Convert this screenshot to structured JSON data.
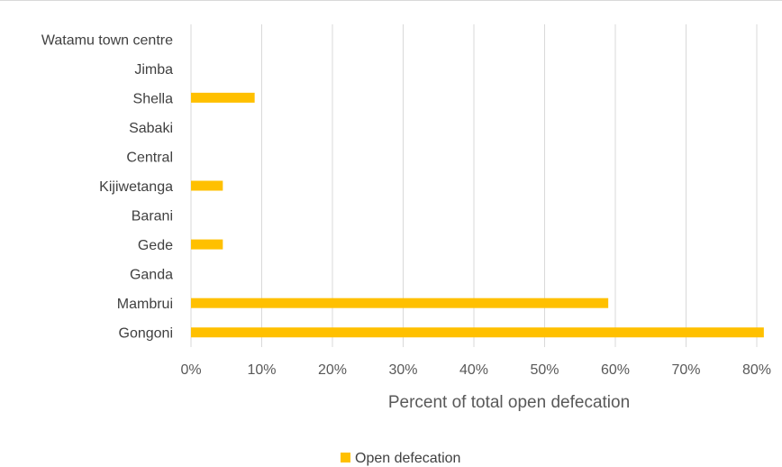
{
  "chart_data": {
    "type": "bar",
    "orientation": "horizontal",
    "categories": [
      "Watamu town centre",
      "Jimba",
      "Shella",
      "Sabaki",
      "Central",
      "Kijiwetanga",
      "Barani",
      "Gede",
      "Ganda",
      "Mambrui",
      "Gongoni"
    ],
    "series": [
      {
        "name": "Open defecation",
        "values": [
          0,
          0,
          9,
          0,
          0,
          4.5,
          0,
          4.5,
          0,
          59,
          81
        ]
      }
    ],
    "xlabel": "Percent of total open defecation",
    "ylabel": "",
    "xlim": [
      0,
      80
    ],
    "xticks": [
      "0%",
      "10%",
      "20%",
      "30%",
      "40%",
      "50%",
      "60%",
      "70%",
      "80%"
    ],
    "grid": "vertical",
    "legend_position": "bottom",
    "colors": {
      "bar": "#FFC000",
      "grid": "#d9d9d9"
    }
  }
}
